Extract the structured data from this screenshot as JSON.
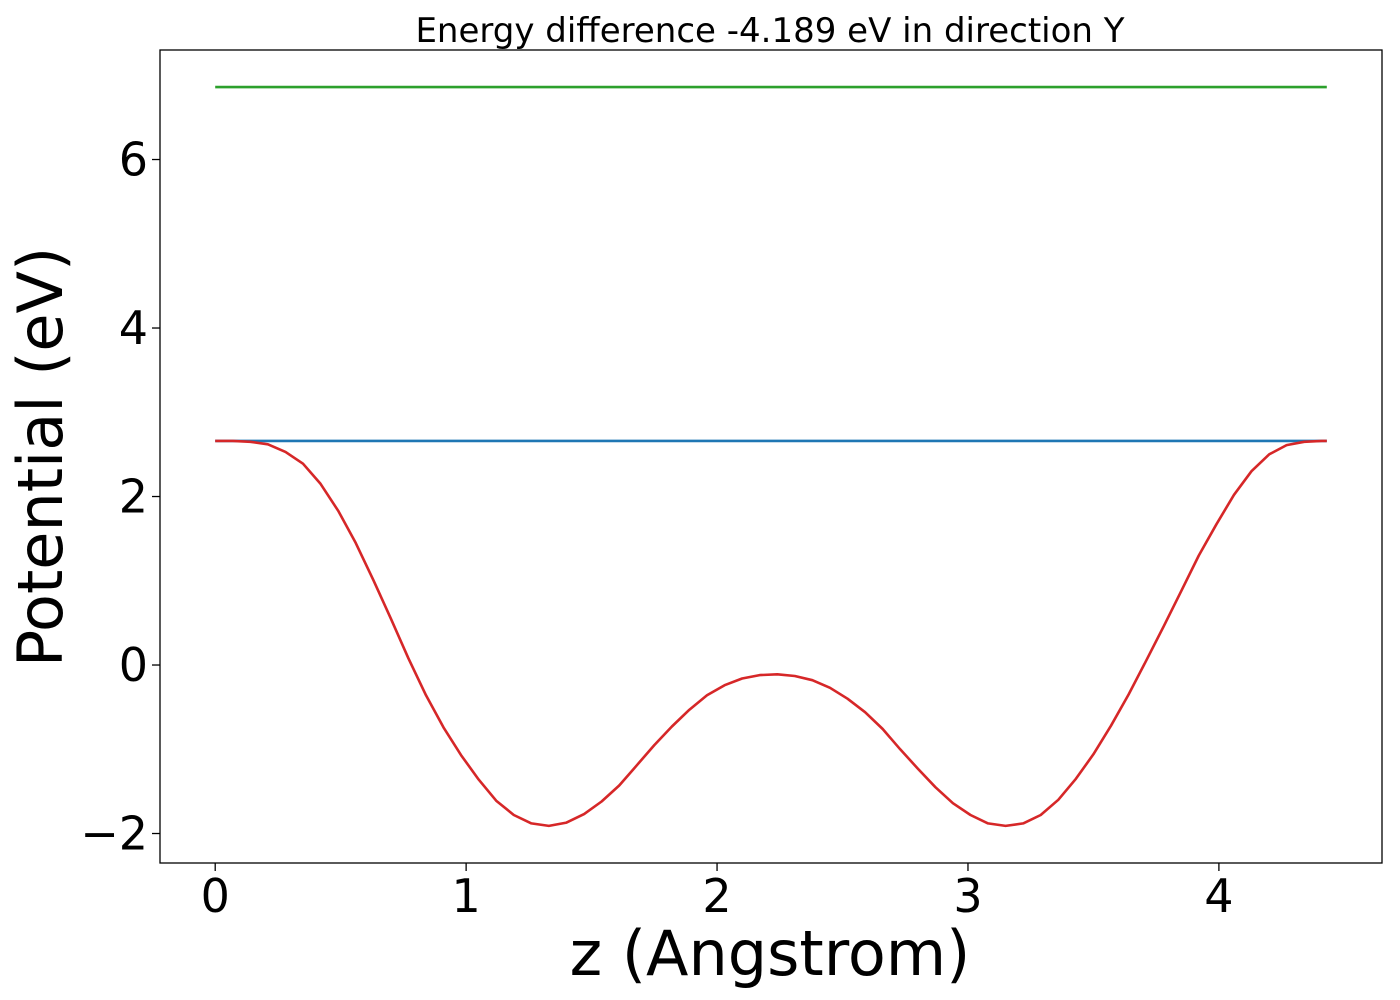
{
  "chart_data": {
    "type": "line",
    "title": "Energy difference -4.189 eV in direction Y",
    "xlabel": "z (Angstrom)",
    "ylabel": "Potential (eV)",
    "xlim": [
      -0.22,
      4.65
    ],
    "ylim": [
      -2.35,
      7.3
    ],
    "xticks": [
      0,
      1,
      2,
      3,
      4
    ],
    "yticks": [
      -2,
      0,
      2,
      4,
      6
    ],
    "xtick_labels": [
      "0",
      "1",
      "2",
      "3",
      "4"
    ],
    "ytick_labels": [
      "−2",
      "0",
      "2",
      "4",
      "6"
    ],
    "grid": false,
    "legend": "none",
    "series": [
      {
        "color": "#2ca02c",
        "x": [
          0,
          4.43
        ],
        "y": [
          6.86,
          6.86
        ]
      },
      {
        "color": "#1f77b4",
        "x": [
          0,
          4.43
        ],
        "y": [
          2.66,
          2.66
        ]
      },
      {
        "color": "#d62728",
        "x": [
          0,
          0.07,
          0.14,
          0.21,
          0.28,
          0.35,
          0.42,
          0.49,
          0.56,
          0.63,
          0.7,
          0.77,
          0.84,
          0.91,
          0.98,
          1.05,
          1.12,
          1.19,
          1.26,
          1.33,
          1.4,
          1.47,
          1.54,
          1.61,
          1.68,
          1.75,
          1.82,
          1.89,
          1.96,
          2.03,
          2.1,
          2.17,
          2.24,
          2.31,
          2.38,
          2.45,
          2.52,
          2.59,
          2.66,
          2.73,
          2.8,
          2.87,
          2.94,
          3.01,
          3.08,
          3.15,
          3.22,
          3.29,
          3.36,
          3.43,
          3.5,
          3.57,
          3.64,
          3.71,
          3.78,
          3.85,
          3.92,
          3.99,
          4.06,
          4.13,
          4.2,
          4.27,
          4.34,
          4.41,
          4.43
        ],
        "y": [
          2.66,
          2.66,
          2.65,
          2.62,
          2.53,
          2.39,
          2.15,
          1.83,
          1.45,
          1.01,
          0.55,
          0.08,
          -0.36,
          -0.74,
          -1.07,
          -1.36,
          -1.61,
          -1.78,
          -1.88,
          -1.91,
          -1.87,
          -1.77,
          -1.62,
          -1.43,
          -1.19,
          -0.95,
          -0.73,
          -0.53,
          -0.36,
          -0.24,
          -0.16,
          -0.12,
          -0.11,
          -0.13,
          -0.18,
          -0.27,
          -0.4,
          -0.56,
          -0.76,
          -1.0,
          -1.23,
          -1.45,
          -1.64,
          -1.78,
          -1.88,
          -1.91,
          -1.88,
          -1.78,
          -1.6,
          -1.35,
          -1.06,
          -0.72,
          -0.35,
          0.05,
          0.46,
          0.88,
          1.3,
          1.67,
          2.02,
          2.3,
          2.5,
          2.61,
          2.65,
          2.66,
          2.66
        ]
      }
    ]
  }
}
